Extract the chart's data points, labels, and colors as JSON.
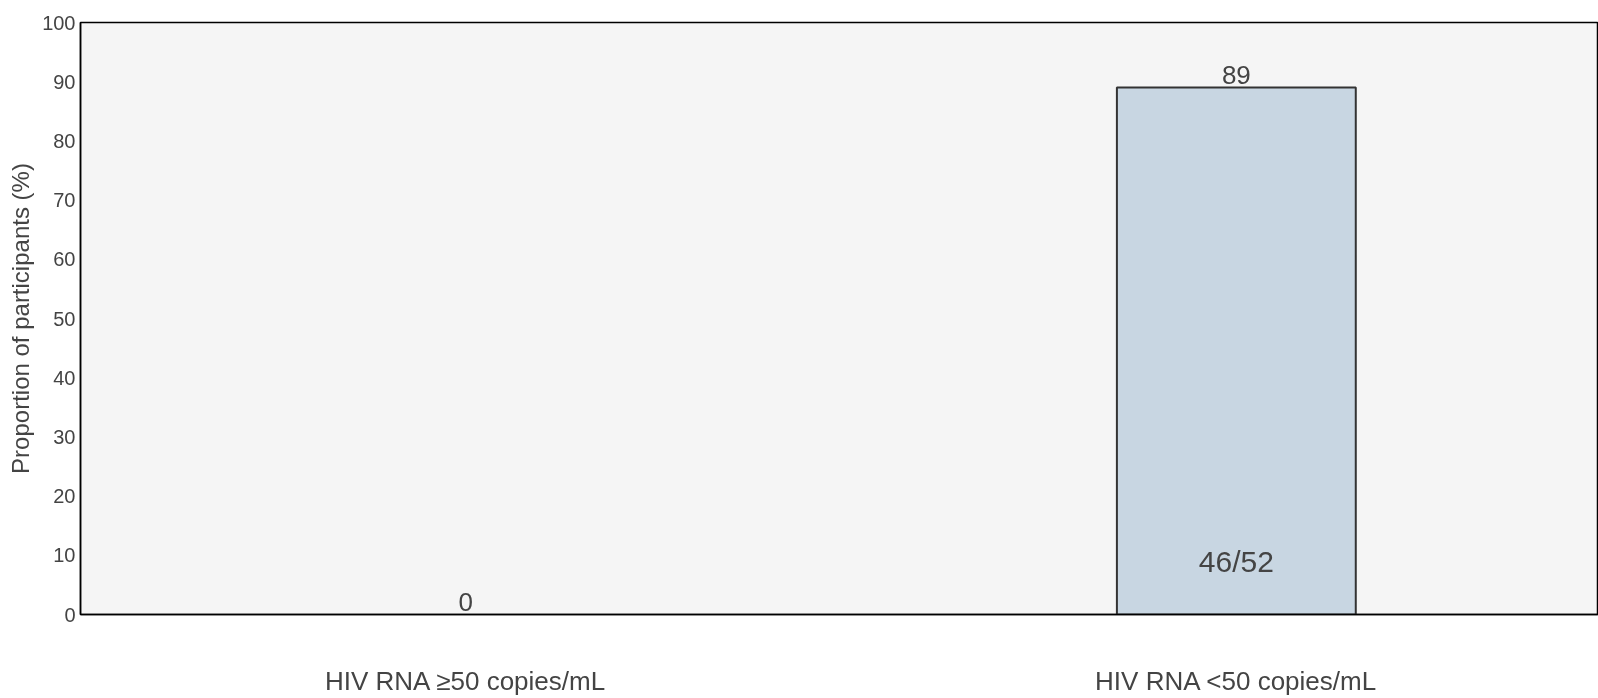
{
  "chart_data": {
    "type": "bar",
    "ylabel": "Proportion of participants (%)",
    "categories": [
      "HIV RNA ≥50 copies/mL",
      "HIV RNA <50 copies/mL"
    ],
    "values": [
      0,
      89
    ],
    "color": "#c8d6e2",
    "data_labels": true,
    "ylim": [
      0,
      100
    ],
    "yticks": [
      0,
      10,
      20,
      30,
      40,
      50,
      60,
      70,
      80,
      90,
      100
    ],
    "grid": false,
    "annotations": [
      "46/52"
    ]
  }
}
